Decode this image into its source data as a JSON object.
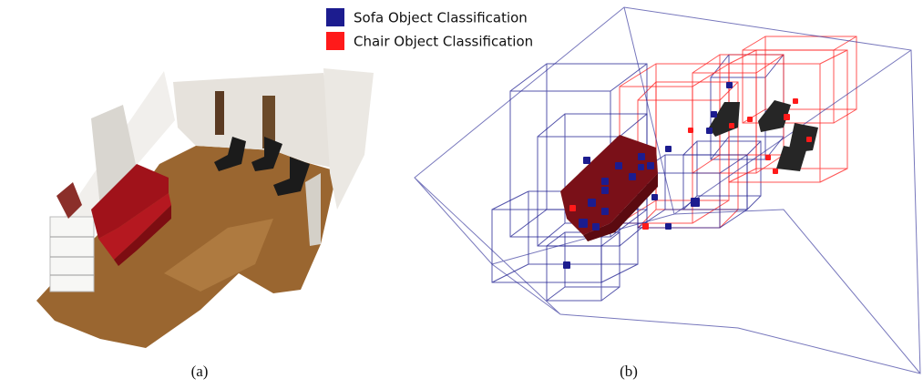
{
  "legend": {
    "items": [
      {
        "label": "Sofa Object Classification",
        "color": "#1c1c8f"
      },
      {
        "label": "Chair Object Classification",
        "color": "#ff1a1a"
      }
    ]
  },
  "captions": [
    "(a)",
    "(b)"
  ]
}
